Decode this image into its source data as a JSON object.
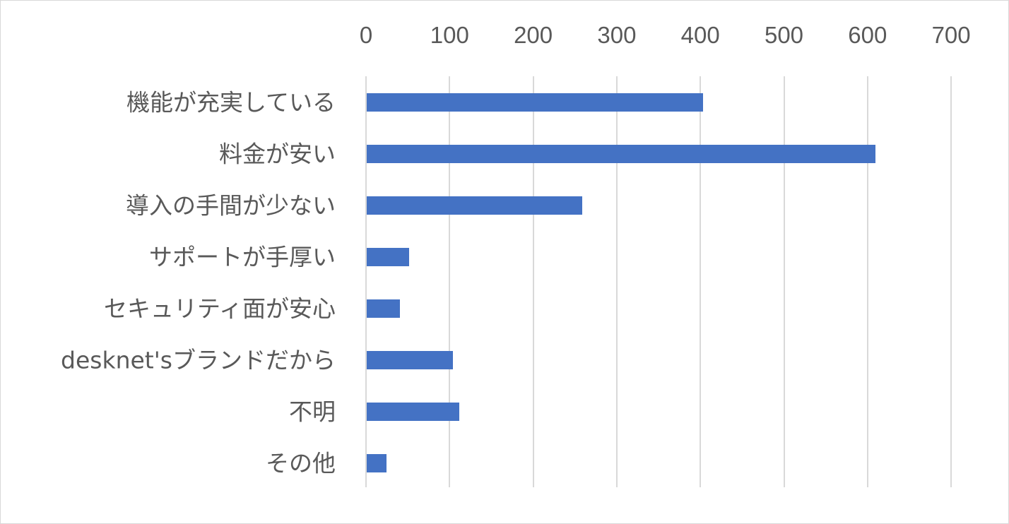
{
  "chart_data": {
    "type": "bar",
    "orientation": "horizontal",
    "title": "",
    "xlabel": "",
    "ylabel": "",
    "categories": [
      "機能が充実している",
      "料金が安い",
      "導入の手間が少ない",
      "サポートが手厚い",
      "セキュリティ面が安心",
      "desknet'sブランドだから",
      "不明",
      "その他"
    ],
    "values": [
      402,
      609,
      258,
      51,
      40,
      103,
      111,
      24
    ],
    "xlim": [
      0,
      700
    ],
    "x_ticks": [
      "0",
      "100",
      "200",
      "300",
      "400",
      "500",
      "600",
      "700"
    ],
    "x_axis_position": "top",
    "grid": "vertical",
    "legend": "none",
    "bar_color": "#4472C4"
  },
  "colors": {
    "bar": "#4472C4",
    "grid": "#D9D9D9",
    "text": "#595959",
    "border": "#D9D9D9"
  }
}
